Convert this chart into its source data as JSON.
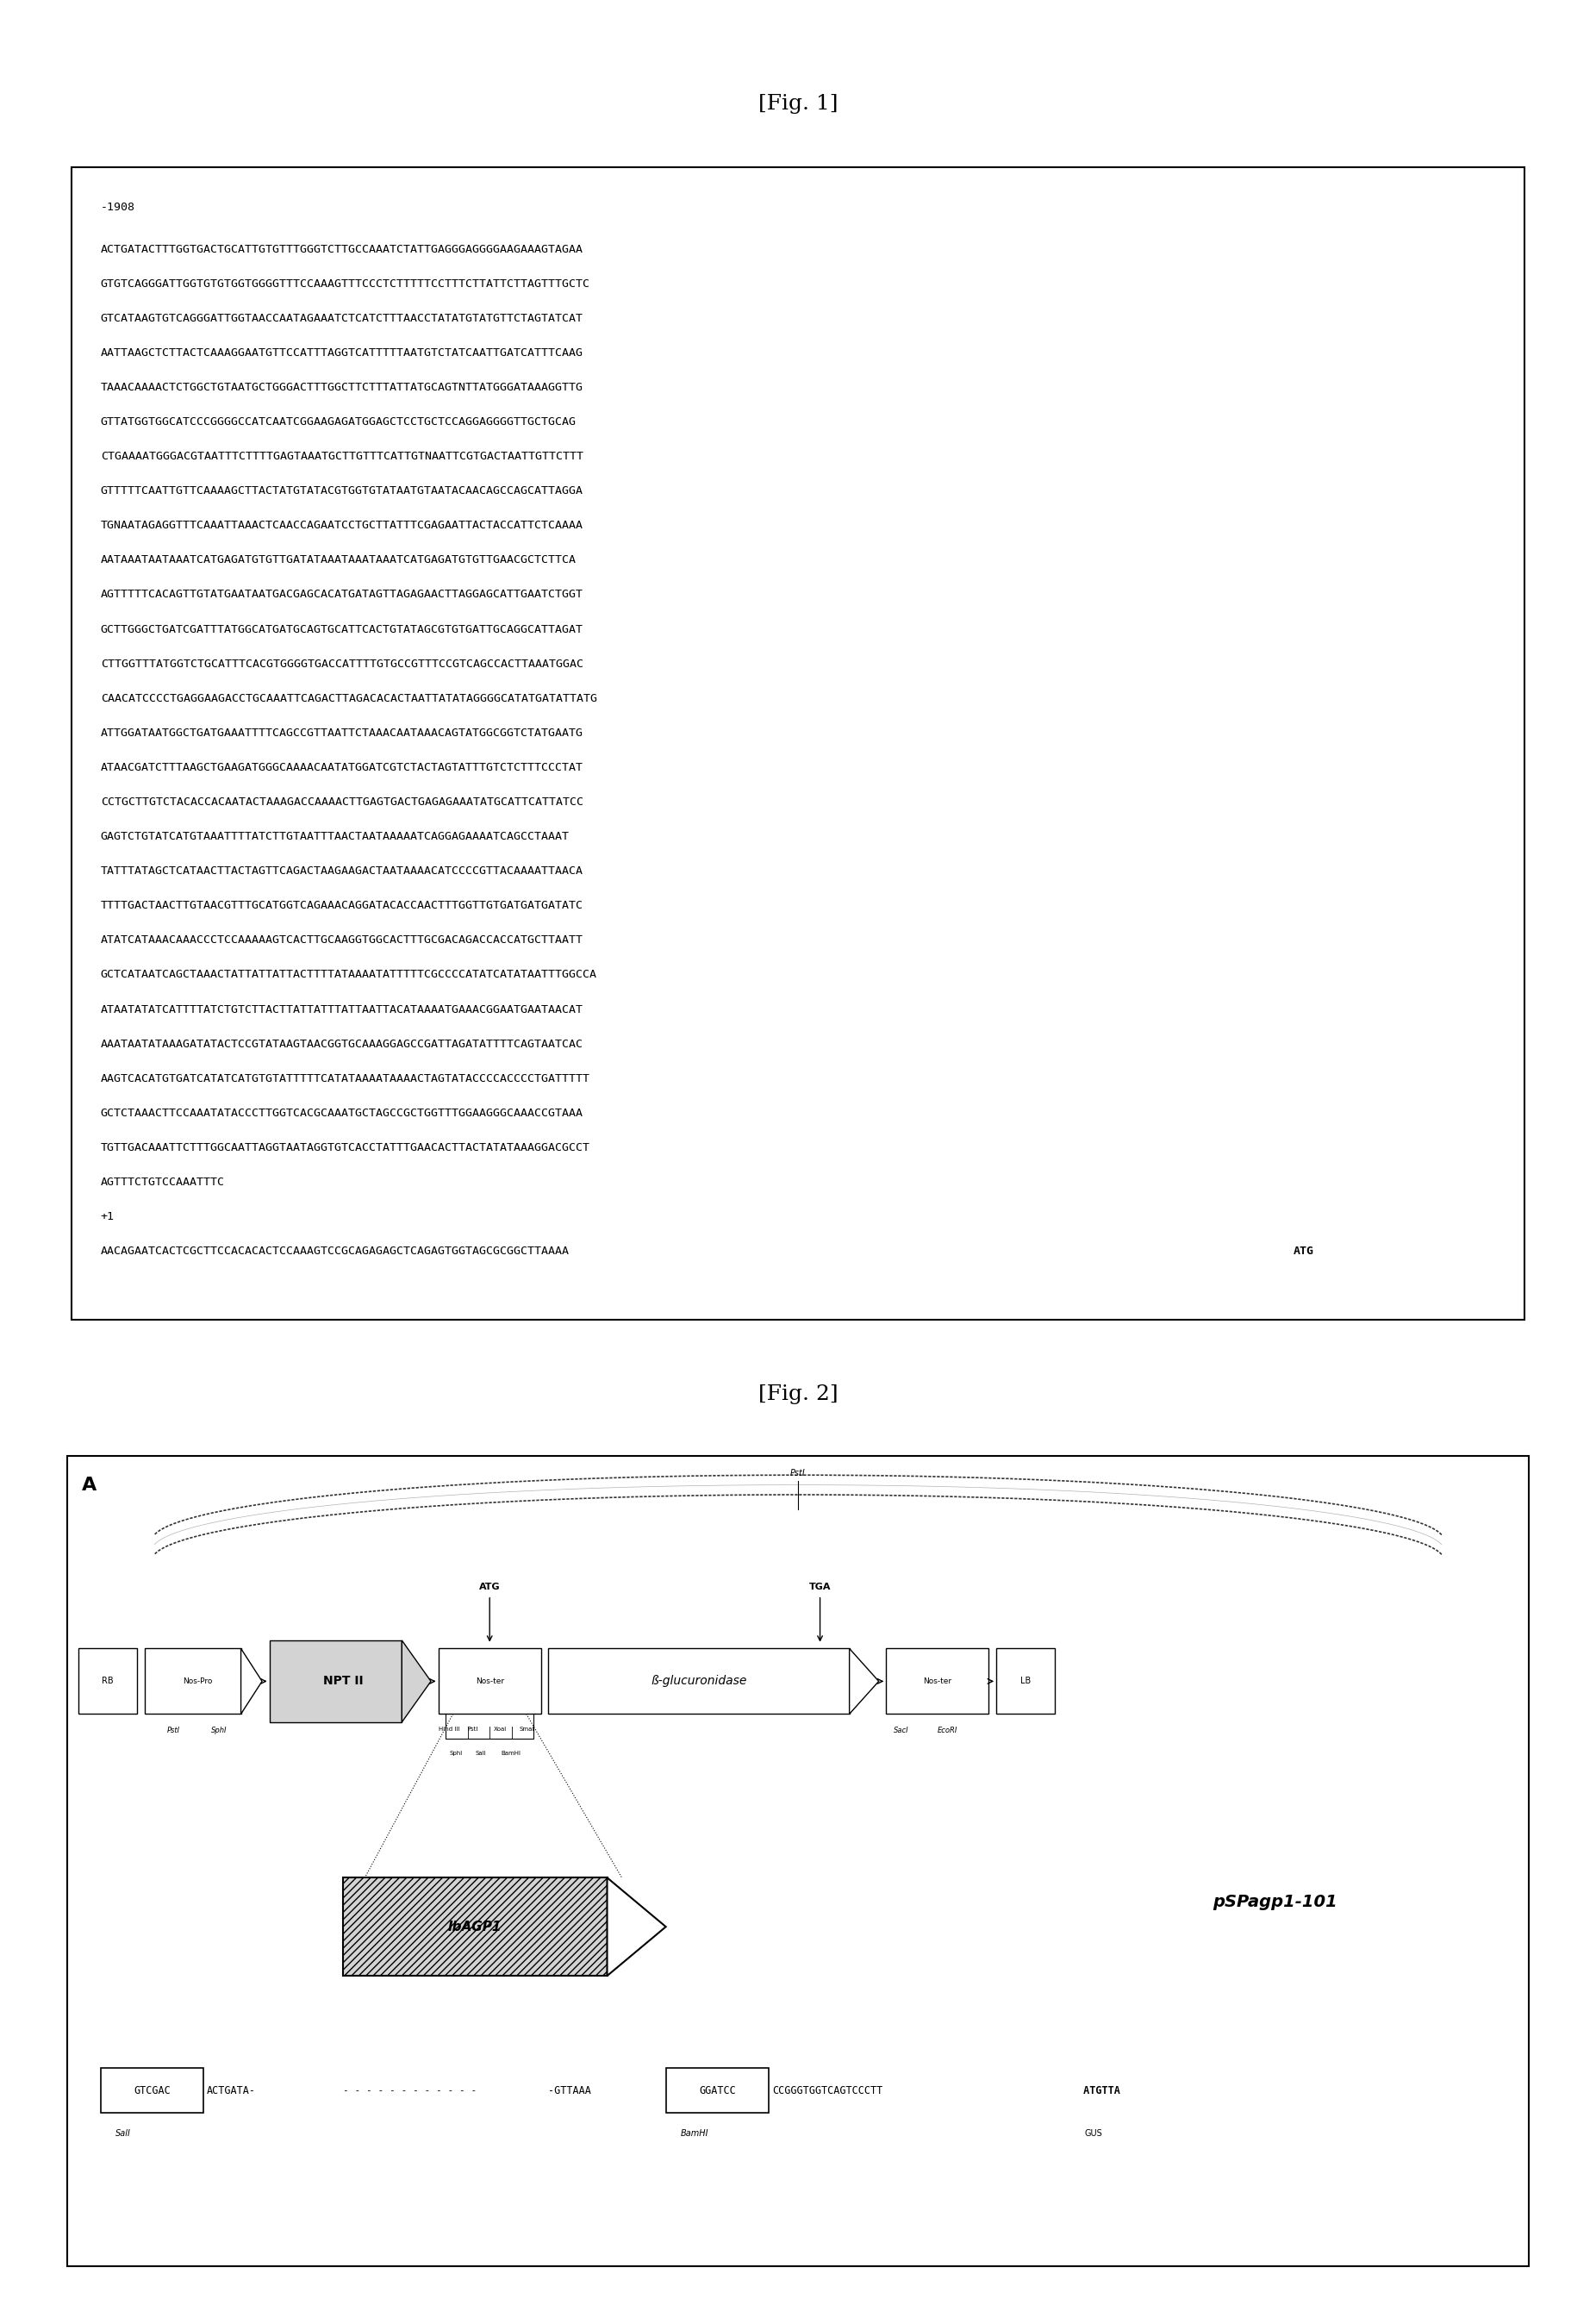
{
  "fig1_title": "[Fig. 1]",
  "fig2_title": "[Fig. 2]",
  "seq_label": "-1908",
  "dna_sequence_lines": [
    "ACTGATACTTTGGTGACTGCATTGTGTTTGGGTCTTGCCAAATCTATTGAGGGAGGGGAAGAAAGTAGAA",
    "GTGTCAGGGATTGGTGTGTGGTGGGGTTTCCAAAGTTTCCCTCTTTTTCCTTTCTTATTCTTAGTTTGCTC",
    "GTCATAAGTGTCAGGGATTGGTAACCAATAGAAATCTCATCTTTAACCTATATGTATGTTCTAGTATCAT",
    "AATTAAGCTCTTACTCAAAGGAATGTTCCATTTAGGTCATTTTTAATGTCTATCAATTGATCATTTCAAG",
    "TAAACAAAACTCTGGCTGTAATGCTGGGACTTTGGCTTCTTTATTATGCAGTNTTATGGGATAAAGGTTG",
    "GTTATGGTGGCATCCCGGGGCCATCAATCGGAAGAGATGGAGCTCCTGCTCCAGGAGGGGTTGCTGCAG",
    "CTGAAAATGGGACGTAATTTCTTTTGAGTAAATGCTTGTTTCATTGTNAATTCGTGACTAATTGTTCTTT",
    "GTTTTTCAATTGTTCAAAAGCTTACTATGTATACGTGGTGTATAATGTAATACAACAGCCAGCATTAGGA",
    "TGNAATAGAGGTTTCAAATTAAACTCAACCAGAATCCTGCTTATTTCGAGAATTACTACCATTCTCAAAA",
    "AATAAATAATAAATCATGAGATGTGTTGATATAAATAAATAAATCATGAGATGTGTTGAACGCTCTTCA",
    "AGTTTTTCACAGTTGTATGAATAATGACGAGCACATGATAGTTAGAGAACTTAGGAGCATTGAATCTGGT",
    "GCTTGGGCTGATCGATTTATGGCATGATGCAGTGCATTCACTGTATAGCGTGTGATTGCAGGCATTAGAT",
    "CTTGGTTTATGGTCTGCATTTCACGTGGGGTGACCATTTTGTGCCGTTTCCGTCAGCCACTTAAATGGAC",
    "CAACATCCCCTGAGGAAGACCTGCAAATTCAGACTTAGACACACTAATTATATAGGGGCATATGATATTATG",
    "ATTGGATAATGGCTGATGAAATTTTCAGCCGTTAATTCTAAACAATAAACAGTATGGCGGTCTATGAATG",
    "ATAACGATCTTTAAGCTGAAGATGGGCAAAACAATATGGATCGTCTACTAGTATTTGTCTCTTTCCCTAT",
    "CCTGCTTGTCTACACCACAATACTAAAGACCAAAACTTGAGTGACTGAGAGAAATATGCATTCATTATCC",
    "GAGTCTGTATCATGTAAATTTTATCTTGTAATTTAACTAATAAAAATCAGGAGAAAATCAGCCTAAAT",
    "TATTTATAGCTCATAACTTACTAGTTCAGACTAAGAAGACTAATAAAACATCCCCGTTACAAAATTAACA",
    "TTTTGACTAACTTGTAACGTTTGCATGGTCAGAAACAGGATACACCAACTTTGGTTGTGATGATGATATC",
    "ATATCATAAACAAACCCTCCAAAAAGTCACTTGCAAGGTGGCACTTTGCGACAGACCACCATGCTTAATT",
    "GCTCATAATCAGCTAAACTATTATTATTACTTTTATAAAATATTTTTCGCCCCATATCATATAATTTGGCCA",
    "ATAATATATCATTTTATCTGTCTTACTTATTATTTATTAATTACATAAAATGAAACGGAATGAATAACAT",
    "AAATAATATAAAGATATACTCCGTATAAGTAACGGTGCAAAGGAGCCGATTAGATATTTTCAGTAATCAC",
    "AAGTCACATGTGATCATATCATGTGTATTTTTCATATAAAATAAAACTAGTATACCCCACCCCTGATTTTT",
    "GCTCTAAACTTCCAAATATACCCTTGGTCACGCAAATGCTAGCCGCTGGTTTGGAAGGGCAAACCGTAAA",
    "TGTTGACAAATTCTTTGGCAATTAGGTAATAGGTGTCACCTATTTGAACACTTACTATATAAAGGACGCCT",
    "AGTTTCTGTCCAAATTTC",
    "+1",
    "AACAGAATCACTCGCTTCCACACACTCCAAAGTCCGCAGAGAGCTCAGAGTGGTAGCGCGGCTTAAAAATG"
  ],
  "background_color": "#ffffff",
  "plasmid_name": "pSPagp1-101",
  "promoter_name": "IbAGP1"
}
